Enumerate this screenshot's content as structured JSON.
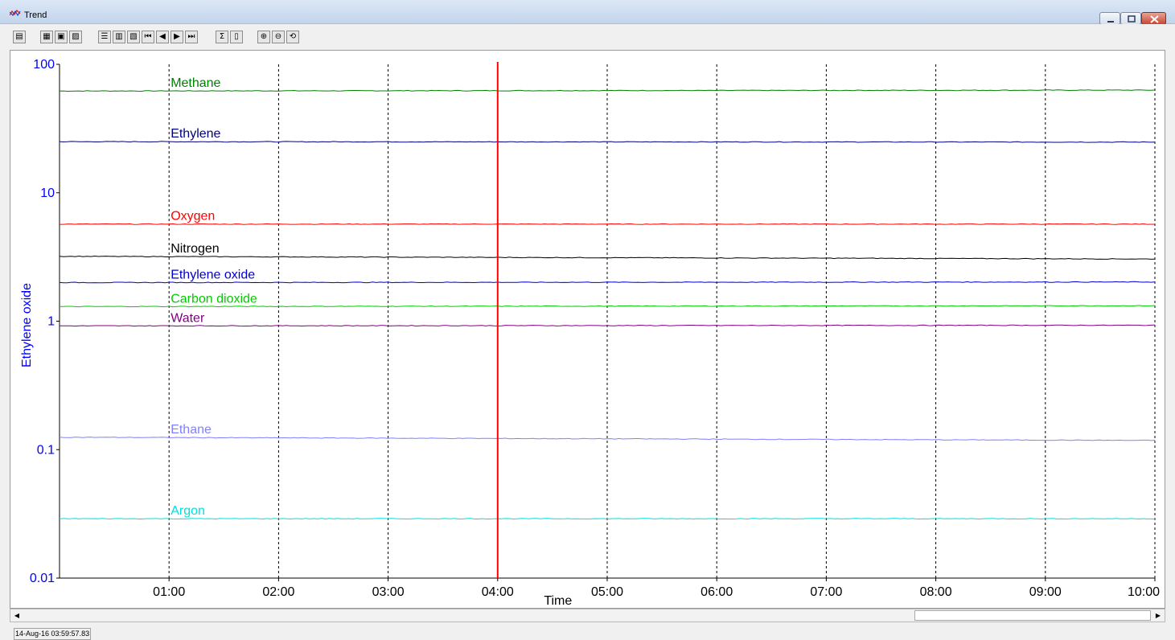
{
  "window": {
    "title": "Trend",
    "icon": "trend-chart-icon",
    "buttons": [
      "minimize-icon",
      "maximize-icon",
      "close-icon"
    ]
  },
  "toolbar": {
    "buttons": [
      {
        "name": "open-icon",
        "glyph": "▤"
      },
      {
        "name": "copy-icon",
        "glyph": "▦"
      },
      {
        "name": "print-icon",
        "glyph": "▣"
      },
      {
        "name": "export-icon",
        "glyph": "▨"
      },
      {
        "name": "list-view-icon",
        "glyph": "☰"
      },
      {
        "name": "columns-view-icon",
        "glyph": "▥"
      },
      {
        "name": "windows-icon",
        "glyph": "▧"
      },
      {
        "name": "first-icon",
        "glyph": "⏮"
      },
      {
        "name": "previous-icon",
        "glyph": "◀"
      },
      {
        "name": "next-icon",
        "glyph": "▶"
      },
      {
        "name": "last-icon",
        "glyph": "⏭"
      },
      {
        "name": "sum-icon",
        "glyph": "Σ"
      },
      {
        "name": "scale-icon",
        "glyph": "▯"
      },
      {
        "name": "zoom-in-icon",
        "glyph": "⊕"
      },
      {
        "name": "zoom-out-icon",
        "glyph": "⊖"
      },
      {
        "name": "zoom-reset-icon",
        "glyph": "⟲"
      }
    ]
  },
  "chart_data": {
    "type": "line",
    "title": "",
    "xlabel": "Time",
    "ylabel": "Ethylene oxide",
    "yscale": "log",
    "ylim": [
      0.01,
      100
    ],
    "xlim": [
      "00:00",
      "10:00"
    ],
    "x_ticks": [
      "01:00",
      "02:00",
      "03:00",
      "04:00",
      "05:00",
      "06:00",
      "07:00",
      "08:00",
      "09:00",
      "10:00"
    ],
    "y_ticks": [
      "0.01",
      "0.1",
      "1",
      "10",
      "100"
    ],
    "grid": "vertical dashed",
    "cursor": {
      "x": "04:00",
      "color": "#ff0000"
    },
    "x": [
      "00:00",
      "10:00"
    ],
    "series": [
      {
        "name": "Methane",
        "color": "#008000",
        "values": [
          62,
          63
        ]
      },
      {
        "name": "Ethylene",
        "color": "#000080",
        "values": [
          25,
          24.8
        ]
      },
      {
        "name": "Oxygen",
        "color": "#ff0000",
        "values": [
          5.7,
          5.7
        ]
      },
      {
        "name": "Nitrogen",
        "color": "#000000",
        "values": [
          3.2,
          3.05
        ]
      },
      {
        "name": "Ethylene oxide",
        "color": "#0000cc",
        "values": [
          2.0,
          2.02
        ]
      },
      {
        "name": "Carbon dioxide",
        "color": "#00cc00",
        "values": [
          1.3,
          1.32
        ]
      },
      {
        "name": "Water",
        "color": "#800080",
        "values": [
          0.92,
          0.93
        ]
      },
      {
        "name": "Ethane",
        "color": "#8080ff",
        "values": [
          0.125,
          0.118
        ]
      },
      {
        "name": "Argon",
        "color": "#00e0e0",
        "values": [
          0.029,
          0.029
        ]
      }
    ],
    "axis_color": "#0000ff"
  },
  "statusbar": {
    "text": "14-Aug-16 03:59:57.83"
  }
}
